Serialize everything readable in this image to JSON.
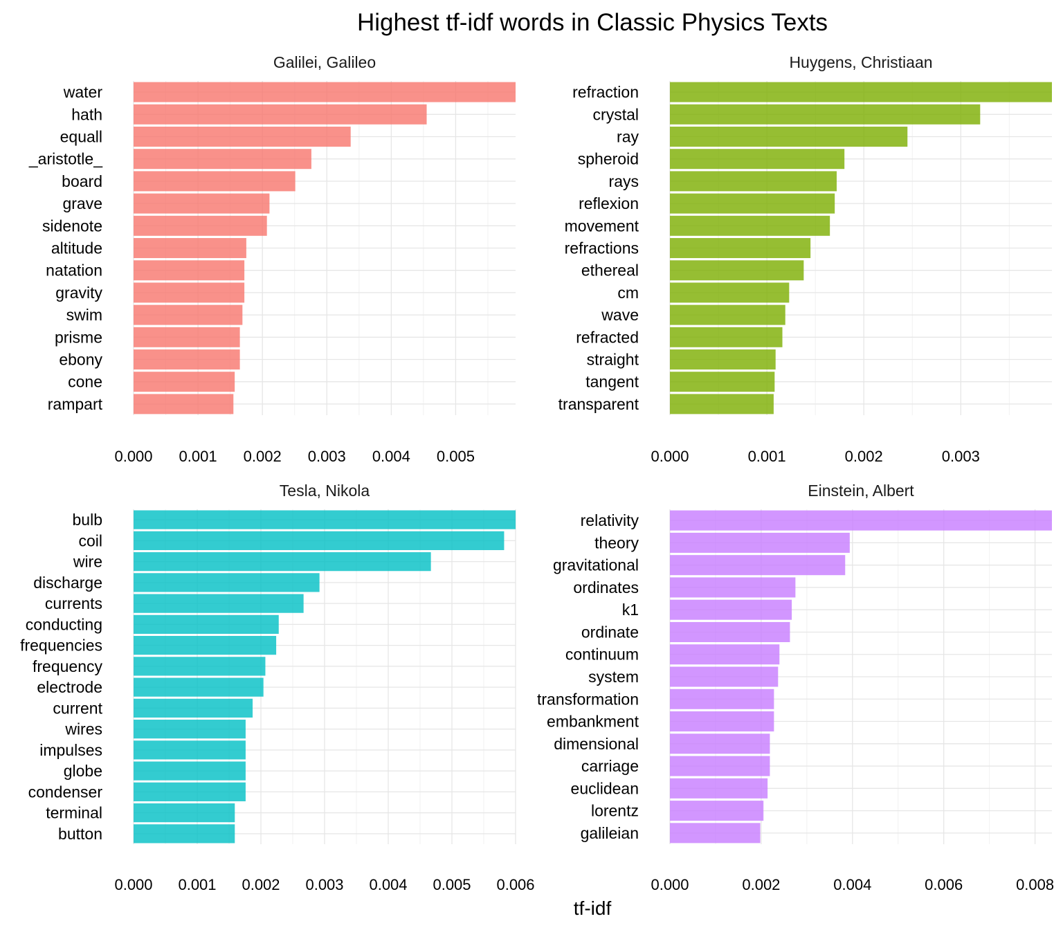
{
  "title": "Highest tf-idf words in Classic Physics Texts",
  "x_axis_title": "tf-idf",
  "chart_data": [
    {
      "type": "bar",
      "orientation": "horizontal",
      "facet": "Galilei, Galileo",
      "color": "#F8766D",
      "categories": [
        "water",
        "hath",
        "equall",
        "_aristotle_",
        "board",
        "grave",
        "sidenote",
        "altitude",
        "natation",
        "gravity",
        "swim",
        "prisme",
        "ebony",
        "cone",
        "rampart"
      ],
      "values": [
        0.00593,
        0.00455,
        0.00337,
        0.00276,
        0.00251,
        0.00211,
        0.00207,
        0.00175,
        0.00172,
        0.00172,
        0.00169,
        0.00165,
        0.00165,
        0.00157,
        0.00155
      ],
      "xlim": [
        0,
        0.00593
      ],
      "xticks": [
        "0.000",
        "0.001",
        "0.002",
        "0.003",
        "0.004",
        "0.005"
      ],
      "grid": true
    },
    {
      "type": "bar",
      "orientation": "horizontal",
      "facet": "Huygens, Christiaan",
      "color": "#7CAE00",
      "categories": [
        "refraction",
        "crystal",
        "ray",
        "spheroid",
        "rays",
        "reflexion",
        "movement",
        "refractions",
        "ethereal",
        "cm",
        "wave",
        "refracted",
        "straight",
        "tangent",
        "transparent"
      ],
      "values": [
        0.00394,
        0.0032,
        0.00245,
        0.0018,
        0.00172,
        0.0017,
        0.00165,
        0.00145,
        0.00138,
        0.00123,
        0.00119,
        0.00116,
        0.00109,
        0.00108,
        0.00107
      ],
      "xlim": [
        0,
        0.00394
      ],
      "xticks": [
        "0.000",
        "0.001",
        "0.002",
        "0.003"
      ],
      "grid": true
    },
    {
      "type": "bar",
      "orientation": "horizontal",
      "facet": "Tesla, Nikola",
      "color": "#00BFC4",
      "categories": [
        "bulb",
        "coil",
        "wire",
        "discharge",
        "currents",
        "conducting",
        "frequencies",
        "frequency",
        "electrode",
        "current",
        "wires",
        "impulses",
        "globe",
        "condenser",
        "terminal",
        "button"
      ],
      "values": [
        0.006,
        0.00582,
        0.00467,
        0.00292,
        0.00267,
        0.00228,
        0.00224,
        0.00207,
        0.00204,
        0.00187,
        0.00176,
        0.00176,
        0.00176,
        0.00176,
        0.00159,
        0.00159
      ],
      "xlim": [
        0,
        0.006
      ],
      "xticks": [
        "0.000",
        "0.001",
        "0.002",
        "0.003",
        "0.004",
        "0.005",
        "0.006"
      ],
      "grid": true
    },
    {
      "type": "bar",
      "orientation": "horizontal",
      "facet": "Einstein, Albert",
      "color": "#C77CFF",
      "categories": [
        "relativity",
        "theory",
        "gravitational",
        "ordinates",
        "k1",
        "ordinate",
        "continuum",
        "system",
        "transformation",
        "embankment",
        "dimensional",
        "carriage",
        "euclidean",
        "lorentz",
        "galileian"
      ],
      "values": [
        0.00837,
        0.00394,
        0.00384,
        0.00275,
        0.00267,
        0.00263,
        0.0024,
        0.00237,
        0.00228,
        0.00228,
        0.00219,
        0.00219,
        0.00214,
        0.00205,
        0.00198
      ],
      "xlim": [
        0,
        0.00837
      ],
      "xticks": [
        "0.000",
        "0.002",
        "0.004",
        "0.006",
        "0.008"
      ],
      "grid": true
    }
  ]
}
